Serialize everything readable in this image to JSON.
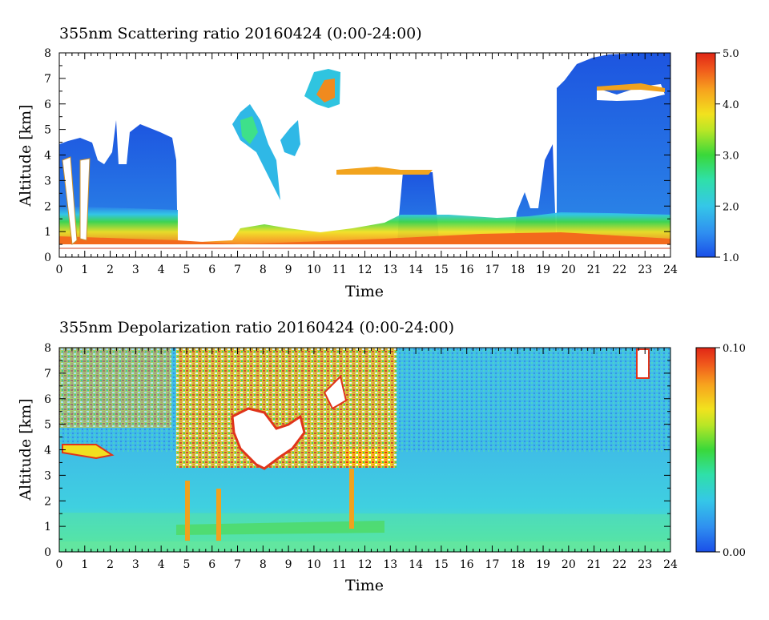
{
  "chart_data": [
    {
      "type": "heatmap",
      "title": "355nm Scattering ratio  20160424 (0:00-24:00)",
      "xlabel": "Time",
      "ylabel": "Altitude [km]",
      "xlim": [
        0,
        24
      ],
      "ylim": [
        0,
        8
      ],
      "x_ticks": [
        "0",
        "1",
        "2",
        "3",
        "4",
        "5",
        "6",
        "7",
        "8",
        "9",
        "10",
        "11",
        "12",
        "13",
        "14",
        "15",
        "16",
        "17",
        "18",
        "19",
        "20",
        "21",
        "22",
        "23",
        "24"
      ],
      "y_ticks": [
        "0",
        "1",
        "2",
        "3",
        "4",
        "5",
        "6",
        "7",
        "8"
      ],
      "colorbar": {
        "min": 1.0,
        "max": 5.0,
        "ticks": [
          "1.0",
          "2.0",
          "3.0",
          "4.0",
          "5.0"
        ]
      },
      "features": {
        "boundary_layer_top_km": 1.0,
        "high_values_near_surface": "4.0-5.0",
        "cloud_patches": [
          {
            "time": [
              0.0,
              1.4
            ],
            "alt": [
              0.5,
              4.5
            ]
          },
          {
            "time": [
              2.3,
              4.6
            ],
            "alt": [
              0.5,
              5.5
            ]
          },
          {
            "time": [
              7.0,
              9.2
            ],
            "alt": [
              2.0,
              6.0
            ]
          },
          {
            "time": [
              9.8,
              11.4
            ],
            "alt": [
              5.8,
              7.3
            ]
          },
          {
            "time": [
              13.5,
              14.8
            ],
            "alt": [
              1.2,
              3.5
            ]
          },
          {
            "time": [
              19.0,
              24.0
            ],
            "alt": [
              0.5,
              8.0
            ]
          }
        ]
      }
    },
    {
      "type": "heatmap",
      "title": "355nm Depolarization ratio  20160424 (0:00-24:00)",
      "xlabel": "Time",
      "ylabel": "Altitude [km]",
      "xlim": [
        0,
        24
      ],
      "ylim": [
        0,
        8
      ],
      "x_ticks": [
        "0",
        "1",
        "2",
        "3",
        "4",
        "5",
        "6",
        "7",
        "8",
        "9",
        "10",
        "11",
        "12",
        "13",
        "14",
        "15",
        "16",
        "17",
        "18",
        "19",
        "20",
        "21",
        "22",
        "23",
        "24"
      ],
      "y_ticks": [
        "0",
        "1",
        "2",
        "3",
        "4",
        "5",
        "6",
        "7",
        "8"
      ],
      "colorbar": {
        "min": 0.0,
        "max": 0.1,
        "ticks": [
          "0.00",
          "0.10"
        ]
      },
      "features": {
        "noisy_high_region": {
          "time": [
            4.5,
            13.2
          ],
          "alt": [
            3.0,
            8.0
          ]
        },
        "dust_layer": {
          "time": [
            7.0,
            9.5
          ],
          "alt": [
            3.5,
            5.5
          ]
        },
        "near_surface_layer_km": [
          0.5,
          1.5
        ]
      }
    }
  ]
}
